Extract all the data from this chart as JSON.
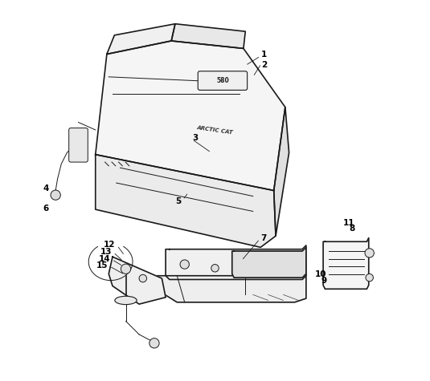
{
  "background_color": "#ffffff",
  "line_color": "#1a1a1a",
  "label_color": "#000000",
  "figsize": [
    5.35,
    4.75
  ],
  "dpi": 100
}
